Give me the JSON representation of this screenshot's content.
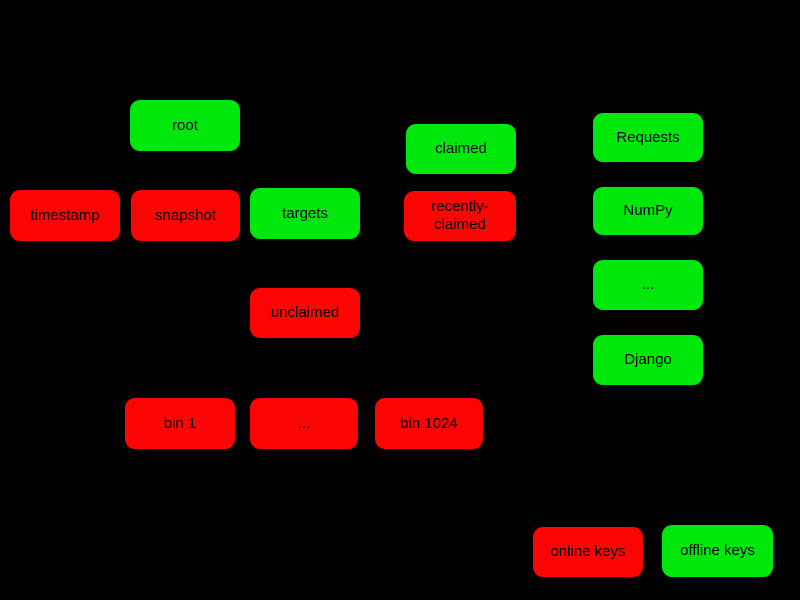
{
  "colors": {
    "background": "#000000",
    "text": "#000000",
    "online_key_red": "#fb0505",
    "offline_key_green": "#00e80b"
  },
  "diagram": {
    "nodes": {
      "root": {
        "label": "root",
        "key_type": "offline"
      },
      "timestamp": {
        "label": "timestamp",
        "key_type": "online"
      },
      "snapshot": {
        "label": "snapshot",
        "key_type": "online"
      },
      "targets": {
        "label": "targets",
        "key_type": "offline"
      },
      "claimed": {
        "label": "claimed",
        "key_type": "offline"
      },
      "recently_claimed": {
        "label": "recently-claimed",
        "key_type": "online"
      },
      "unclaimed": {
        "label": "unclaimed",
        "key_type": "online"
      },
      "requests": {
        "label": "Requests",
        "key_type": "offline"
      },
      "numpy": {
        "label": "NumPy",
        "key_type": "offline"
      },
      "projects_more": {
        "label": "...",
        "key_type": "offline"
      },
      "django": {
        "label": "Django",
        "key_type": "offline"
      },
      "bin_1": {
        "label": "bin 1",
        "key_type": "online"
      },
      "bins_more": {
        "label": "...",
        "key_type": "online"
      },
      "bin_1024": {
        "label": "bin 1024",
        "key_type": "online"
      }
    },
    "legend": {
      "online_keys": {
        "label": "online keys",
        "key_type": "online"
      },
      "offline_keys": {
        "label": "offline keys",
        "key_type": "offline"
      }
    }
  }
}
